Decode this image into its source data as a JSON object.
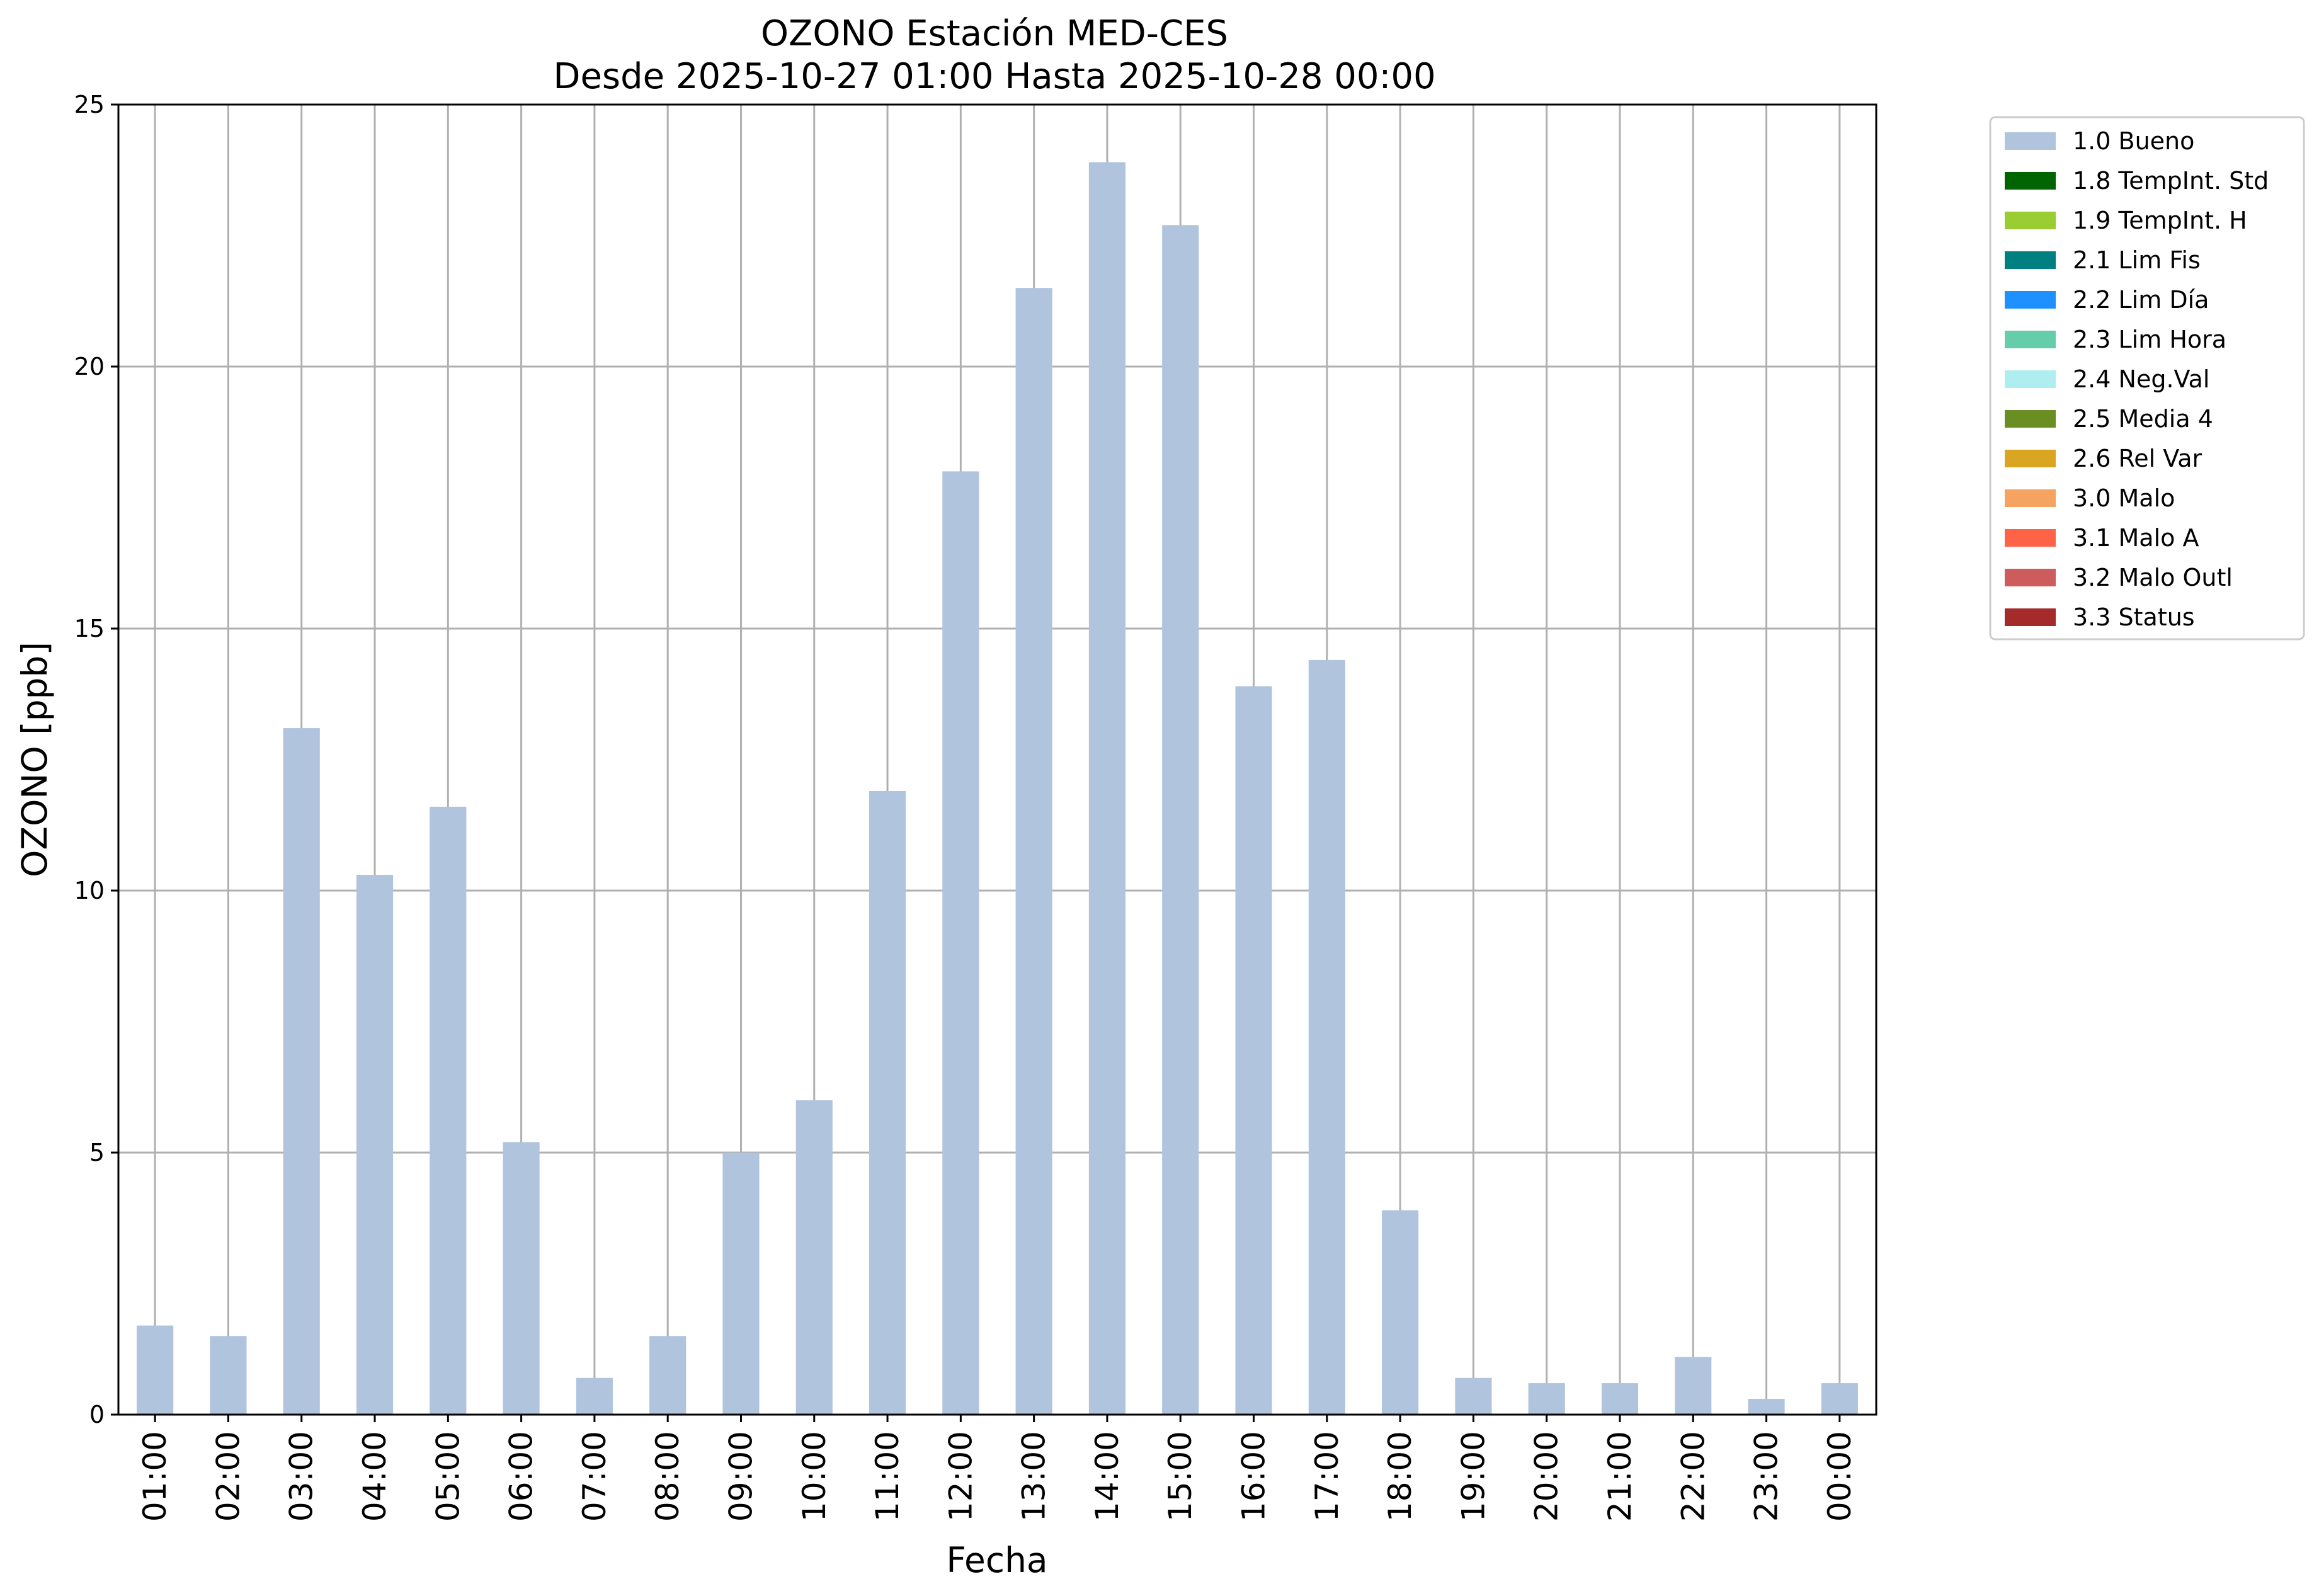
{
  "chart_data": {
    "type": "bar",
    "title": "OZONO Estación MED-CES",
    "subtitle": "Desde 2025-10-27 01:00 Hasta 2025-10-28 00:00",
    "xlabel": "Fecha",
    "ylabel": "OZONO [ppb]",
    "ylim": [
      0,
      25
    ],
    "yticks": [
      0,
      5,
      10,
      15,
      20,
      25
    ],
    "grid": true,
    "legend_position": "outside-top-right",
    "categories": [
      "01:00",
      "02:00",
      "03:00",
      "04:00",
      "05:00",
      "06:00",
      "07:00",
      "08:00",
      "09:00",
      "10:00",
      "11:00",
      "12:00",
      "13:00",
      "14:00",
      "15:00",
      "16:00",
      "17:00",
      "18:00",
      "19:00",
      "20:00",
      "21:00",
      "22:00",
      "23:00",
      "00:00"
    ],
    "series": [
      {
        "name": "1.0 Bueno",
        "color": "#b0c4de",
        "values": [
          1.7,
          1.5,
          13.1,
          10.3,
          11.6,
          5.2,
          0.7,
          1.5,
          5.0,
          6.0,
          11.9,
          18.0,
          21.5,
          23.9,
          22.7,
          13.9,
          14.4,
          3.9,
          0.7,
          0.6,
          0.6,
          1.1,
          0.3,
          0.6
        ]
      }
    ],
    "legend": [
      {
        "label": "1.0 Bueno",
        "color": "#b0c4de"
      },
      {
        "label": "1.8 TempInt. Std",
        "color": "#006400"
      },
      {
        "label": "1.9 TempInt. H",
        "color": "#9acd32"
      },
      {
        "label": "2.1 Lim Fis",
        "color": "#008080"
      },
      {
        "label": "2.2 Lim Día",
        "color": "#1e90ff"
      },
      {
        "label": "2.3 Lim Hora",
        "color": "#66cdaa"
      },
      {
        "label": "2.4 Neg.Val",
        "color": "#afeeee"
      },
      {
        "label": "2.5 Media 4",
        "color": "#6b8e23"
      },
      {
        "label": "2.6 Rel Var",
        "color": "#daa520"
      },
      {
        "label": "3.0 Malo",
        "color": "#f4a460"
      },
      {
        "label": "3.1 Malo A",
        "color": "#ff6347"
      },
      {
        "label": "3.2 Malo Outl",
        "color": "#cd5c5c"
      },
      {
        "label": "3.3 Status",
        "color": "#a52a2a"
      }
    ]
  }
}
